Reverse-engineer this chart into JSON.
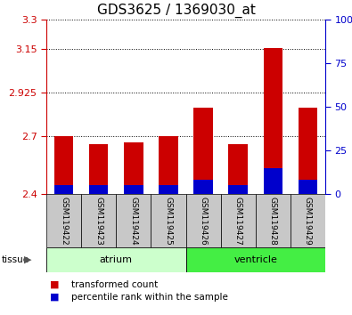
{
  "title": "GDS3625 / 1369030_at",
  "samples": [
    "GSM119422",
    "GSM119423",
    "GSM119424",
    "GSM119425",
    "GSM119426",
    "GSM119427",
    "GSM119428",
    "GSM119429"
  ],
  "transformed_counts": [
    2.7,
    2.655,
    2.665,
    2.7,
    2.845,
    2.655,
    3.155,
    2.845
  ],
  "percentile_ranks": [
    5,
    5,
    5,
    5,
    8,
    5,
    15,
    8
  ],
  "bar_base": 2.4,
  "tissue_groups": [
    {
      "label": "atrium",
      "start": 0,
      "end": 4,
      "color": "#CCFFCC"
    },
    {
      "label": "ventricle",
      "start": 4,
      "end": 8,
      "color": "#44EE44"
    }
  ],
  "ylim_left": [
    2.4,
    3.3
  ],
  "yticks_left": [
    2.4,
    2.7,
    2.925,
    3.15,
    3.3
  ],
  "ylim_right": [
    0,
    100
  ],
  "yticks_right": [
    0,
    25,
    50,
    75,
    100
  ],
  "ytick_labels_right": [
    "0",
    "25",
    "50",
    "75",
    "100%"
  ],
  "bar_color_red": "#CC0000",
  "bar_color_blue": "#0000CC",
  "left_tick_color": "#CC0000",
  "right_tick_color": "#0000CC",
  "bg_color": "#FFFFFF",
  "xticklabel_bg": "#C8C8C8",
  "legend_red_label": "transformed count",
  "legend_blue_label": "percentile rank within the sample"
}
